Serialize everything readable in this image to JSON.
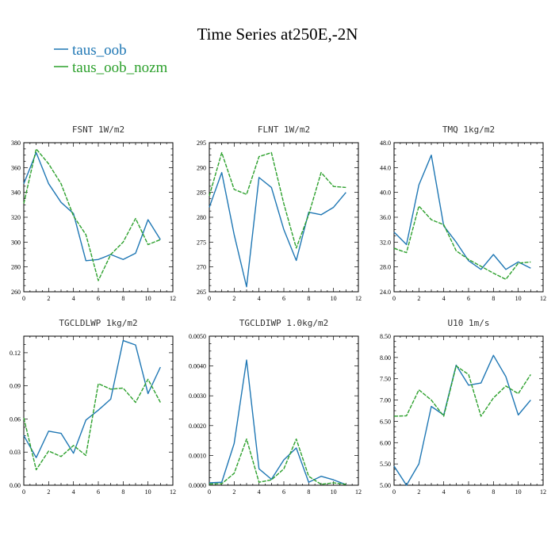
{
  "title": "Time Series at250E,-2N",
  "legend": [
    {
      "name": "taus_oob",
      "color": "#1f77b4",
      "dash": "solid"
    },
    {
      "name": "taus_oob_nozm",
      "color": "#2ca02c",
      "dash": "dashed"
    }
  ],
  "chart_data": [
    {
      "type": "line",
      "title": "FSNT   1W/m2",
      "x": [
        0,
        1,
        2,
        3,
        4,
        5,
        6,
        7,
        8,
        9,
        10,
        11
      ],
      "xlim": [
        0,
        12
      ],
      "xticks": [
        "0",
        "2",
        "4",
        "6",
        "8",
        "10",
        "12"
      ],
      "ylim": [
        260,
        380
      ],
      "yticks": [
        "260",
        "280",
        "300",
        "320",
        "340",
        "360",
        "380"
      ],
      "series": [
        {
          "name": "taus_oob",
          "values": [
            347,
            372,
            347,
            332,
            323,
            285,
            286,
            290,
            286,
            291,
            318,
            302
          ]
        },
        {
          "name": "taus_oob_nozm",
          "values": [
            331,
            375,
            363,
            347,
            321,
            306,
            269,
            290,
            300,
            319,
            298,
            302
          ]
        }
      ]
    },
    {
      "type": "line",
      "title": "FLNT   1W/m2",
      "x": [
        0,
        1,
        2,
        3,
        4,
        5,
        6,
        7,
        8,
        9,
        10,
        11
      ],
      "xlim": [
        0,
        12
      ],
      "xticks": [
        "0",
        "2",
        "4",
        "6",
        "8",
        "10",
        "12"
      ],
      "ylim": [
        265,
        295
      ],
      "yticks": [
        "265",
        "270",
        "275",
        "280",
        "285",
        "290",
        "295"
      ],
      "series": [
        {
          "name": "taus_oob",
          "values": [
            282,
            289,
            276.5,
            266,
            288,
            286,
            277.5,
            271.3,
            281,
            280.5,
            282,
            285
          ]
        },
        {
          "name": "taus_oob_nozm",
          "values": [
            284.3,
            293,
            285.6,
            284.6,
            292.2,
            293,
            282.7,
            273.8,
            280.5,
            289,
            286.2,
            286
          ]
        }
      ]
    },
    {
      "type": "line",
      "title": "TMQ   1kg/m2",
      "x": [
        0,
        1,
        2,
        3,
        4,
        5,
        6,
        7,
        8,
        9,
        10,
        11
      ],
      "xlim": [
        0,
        12
      ],
      "xticks": [
        "0",
        "2",
        "4",
        "6",
        "8",
        "10",
        "12"
      ],
      "ylim": [
        24,
        48
      ],
      "yticks": [
        "24.0",
        "28.0",
        "32.0",
        "36.0",
        "40.0",
        "44.0",
        "48.0"
      ],
      "series": [
        {
          "name": "taus_oob",
          "values": [
            33.6,
            31.6,
            41.2,
            46,
            34.6,
            32,
            29,
            27.6,
            30,
            27.6,
            28.8,
            27.8
          ]
        },
        {
          "name": "taus_oob_nozm",
          "values": [
            31,
            30.3,
            37.8,
            35.6,
            34.8,
            30.6,
            29.2,
            28.1,
            27,
            26,
            28.6,
            28.8
          ]
        }
      ]
    },
    {
      "type": "line",
      "title": "TGCLDLWP   1kg/m2",
      "x": [
        0,
        1,
        2,
        3,
        4,
        5,
        6,
        7,
        8,
        9,
        10,
        11
      ],
      "xlim": [
        0,
        12
      ],
      "xticks": [
        "0",
        "2",
        "4",
        "6",
        "8",
        "10",
        "12"
      ],
      "ylim": [
        0,
        0.135
      ],
      "yticks": [
        "0.00",
        "0.03",
        "0.06",
        "0.09",
        "0.12"
      ],
      "ytick_values": [
        0,
        0.03,
        0.06,
        0.09,
        0.12
      ],
      "series": [
        {
          "name": "taus_oob",
          "values": [
            0.045,
            0.025,
            0.049,
            0.047,
            0.029,
            0.059,
            0.068,
            0.078,
            0.131,
            0.127,
            0.083,
            0.107
          ]
        },
        {
          "name": "taus_oob_nozm",
          "values": [
            0.061,
            0.014,
            0.031,
            0.026,
            0.036,
            0.027,
            0.092,
            0.087,
            0.088,
            0.075,
            0.096,
            0.075
          ]
        }
      ]
    },
    {
      "type": "line",
      "title": "TGCLDIWP   1.0kg/m2",
      "x": [
        0,
        1,
        2,
        3,
        4,
        5,
        6,
        7,
        8,
        9,
        10,
        11
      ],
      "xlim": [
        0,
        12
      ],
      "xticks": [
        "0",
        "2",
        "4",
        "6",
        "8",
        "10",
        "12"
      ],
      "ylim": [
        0,
        0.005
      ],
      "yticks": [
        "0.0000",
        "0.0010",
        "0.0020",
        "0.0030",
        "0.0040",
        "0.0050"
      ],
      "series": [
        {
          "name": "taus_oob",
          "values": [
            8e-05,
            0.0001,
            0.0014,
            0.0042,
            0.00055,
            0.0002,
            0.00085,
            0.00125,
            0.0001,
            0.0003,
            0.00018,
            2e-05
          ]
        },
        {
          "name": "taus_oob_nozm",
          "values": [
            4e-05,
            5e-05,
            0.0004,
            0.00155,
            0.0001,
            0.00018,
            0.00055,
            0.00155,
            0.0003,
            3e-05,
            8e-05,
            3e-05
          ]
        }
      ]
    },
    {
      "type": "line",
      "title": "U10   1m/s",
      "x": [
        0,
        1,
        2,
        3,
        4,
        5,
        6,
        7,
        8,
        9,
        10,
        11
      ],
      "xlim": [
        0,
        12
      ],
      "xticks": [
        "0",
        "2",
        "4",
        "6",
        "8",
        "10",
        "12"
      ],
      "ylim": [
        5,
        8.5
      ],
      "yticks": [
        "5.00",
        "5.50",
        "6.00",
        "6.50",
        "7.00",
        "7.50",
        "8.00",
        "8.50"
      ],
      "series": [
        {
          "name": "taus_oob",
          "values": [
            5.45,
            5.0,
            5.5,
            6.85,
            6.65,
            7.82,
            7.35,
            7.4,
            8.05,
            7.55,
            6.65,
            7.0
          ]
        },
        {
          "name": "taus_oob_nozm",
          "values": [
            6.62,
            6.63,
            7.24,
            7.0,
            6.62,
            7.8,
            7.6,
            6.62,
            7.05,
            7.33,
            7.15,
            7.6
          ]
        }
      ]
    }
  ]
}
